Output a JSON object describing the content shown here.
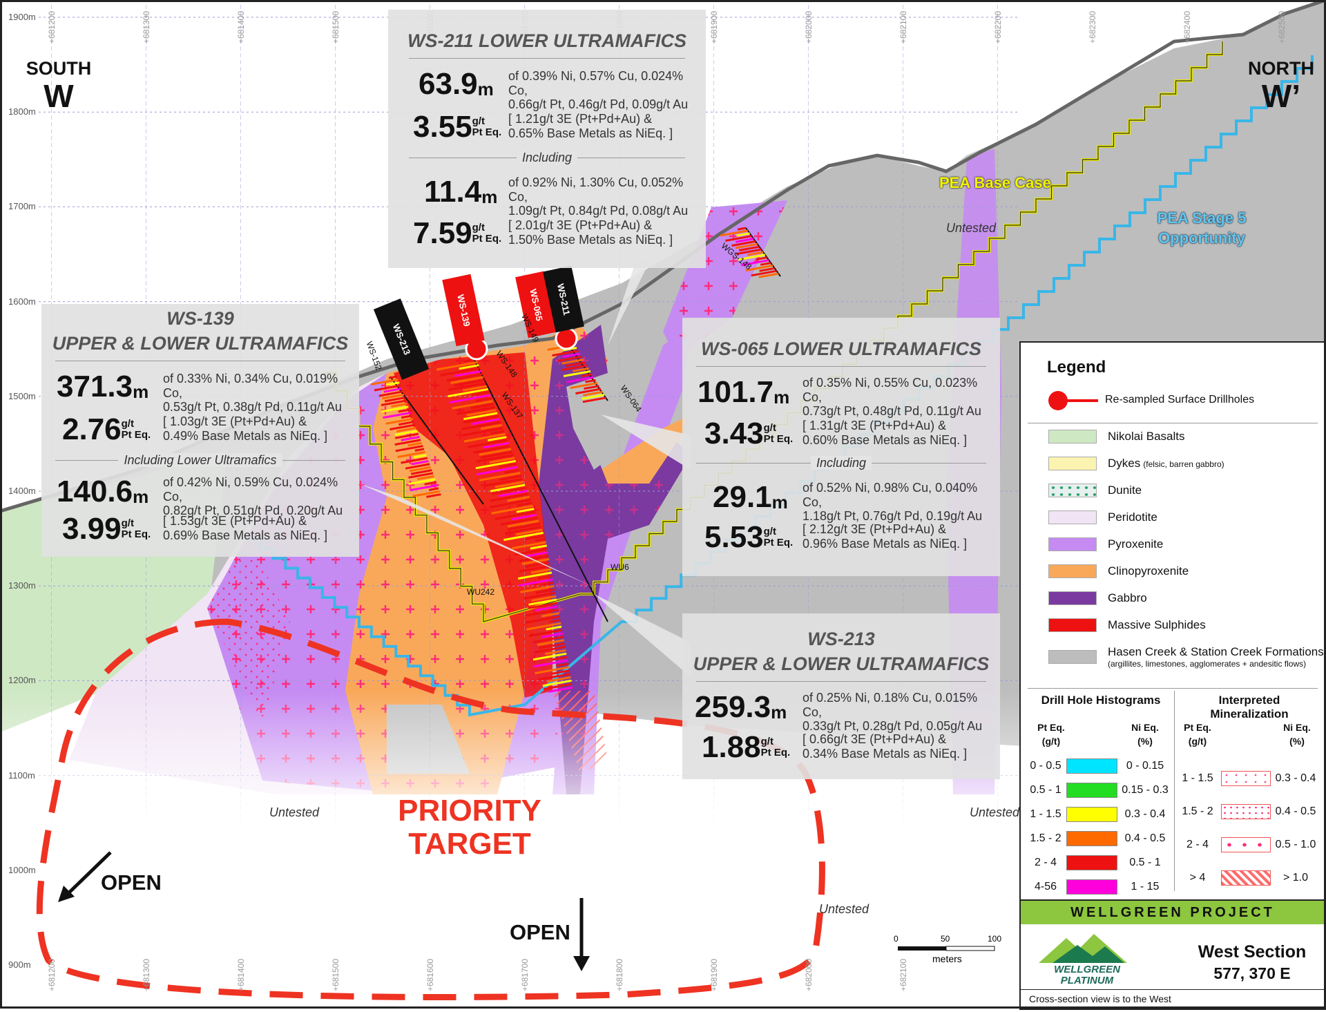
{
  "direction": {
    "south_label": "SOUTH",
    "south_letter": "W",
    "north_label": "NORTH",
    "north_letter": "W’"
  },
  "elevations": [
    "1900m",
    "1800m",
    "1700m",
    "1600m",
    "1500m",
    "1400m",
    "1300m",
    "1200m",
    "1100m",
    "1000m",
    "900m"
  ],
  "eastings": [
    "+681200",
    "+681300",
    "+681400",
    "+681500",
    "+681600",
    "+681700",
    "+681800",
    "+681900",
    "+682000",
    "+682100",
    "+682200",
    "+682300",
    "+682400",
    "+682500"
  ],
  "pit_labels": {
    "base_case": "PEA Base Case",
    "stage5_line1": "PEA Stage 5",
    "stage5_line2": "Opportunity"
  },
  "untested": [
    "Untested",
    "Untested",
    "Untested",
    "Untested"
  ],
  "priority": {
    "line1": "PRIORITY",
    "line2": "TARGET"
  },
  "open": [
    "OPEN",
    "OPEN"
  ],
  "drillholes": {
    "ws213": "WS-213",
    "ws139": "WS-139",
    "ws065": "WS-065",
    "ws211": "WS-211",
    "ws152": "WS-152",
    "ws149": "WS-149",
    "ws148": "WS-148",
    "ws137": "WS-137",
    "ws064": "WS-064",
    "wgs148": "WGS-148",
    "wu242": "WU242",
    "w6": "WU6"
  },
  "callouts": {
    "ws211": {
      "title": "WS-211 LOWER ULTRAMAFICS",
      "s1_val": "63.9",
      "s1_unit": "m",
      "s1_desc1": "of 0.39% Ni, 0.57% Cu, 0.024% Co,",
      "s1_desc2": "0.66g/t Pt, 0.46g/t Pd, 0.09g/t Au",
      "s2_val": "3.55",
      "s2_u1": "g/t",
      "s2_u2": "Pt Eq.",
      "s2_desc1": "[ 1.21g/t 3E (Pt+Pd+Au) &",
      "s2_desc2": "0.65% Base Metals as NiEq. ]",
      "including": "Including",
      "s3_val": "11.4",
      "s3_unit": "m",
      "s3_desc1": "of 0.92% Ni, 1.30% Cu, 0.052% Co,",
      "s3_desc2": "1.09g/t Pt, 0.84g/t Pd, 0.08g/t Au",
      "s4_val": "7.59",
      "s4_u1": "g/t",
      "s4_u2": "Pt Eq.",
      "s4_desc1": "[ 2.01g/t 3E (Pt+Pd+Au) &",
      "s4_desc2": "1.50% Base Metals as NiEq. ]"
    },
    "ws139": {
      "title1": "WS-139",
      "title2": "UPPER & LOWER ULTRAMAFICS",
      "s1_val": "371.3",
      "s1_unit": "m",
      "s1_desc1": "of 0.33% Ni, 0.34% Cu, 0.019% Co,",
      "s1_desc2": "0.53g/t Pt, 0.38g/t Pd, 0.11g/t Au",
      "s2_val": "2.76",
      "s2_u1": "g/t",
      "s2_u2": "Pt Eq.",
      "s2_desc1": "[ 1.03g/t 3E (Pt+Pd+Au) &",
      "s2_desc2": "0.49% Base Metals as NiEq. ]",
      "including": "Including Lower Ultramafics",
      "s3_val": "140.6",
      "s3_unit": "m",
      "s3_desc1": "of 0.42% Ni, 0.59% Cu, 0.024% Co,",
      "s3_desc2": "0.82g/t Pt, 0.51g/t Pd, 0.20g/t Au",
      "s4_val": "3.99",
      "s4_u1": "g/t",
      "s4_u2": "Pt Eq.",
      "s4_desc1": "[ 1.53g/t 3E (Pt+Pd+Au) &",
      "s4_desc2": "0.69% Base Metals as NiEq. ]"
    },
    "ws065": {
      "title": "WS-065 LOWER ULTRAMAFICS",
      "s1_val": "101.7",
      "s1_unit": "m",
      "s1_desc1": "of 0.35% Ni, 0.55% Cu, 0.023% Co,",
      "s1_desc2": "0.73g/t Pt, 0.48g/t Pd, 0.11g/t Au",
      "s2_val": "3.43",
      "s2_u1": "g/t",
      "s2_u2": "Pt Eq.",
      "s2_desc1": "[ 1.31g/t 3E (Pt+Pd+Au) &",
      "s2_desc2": "0.60% Base Metals as NiEq. ]",
      "including": "Including",
      "s3_val": "29.1",
      "s3_unit": "m",
      "s3_desc1": "of 0.52% Ni, 0.98% Cu, 0.040% Co,",
      "s3_desc2": "1.18g/t Pt, 0.76g/t Pd, 0.19g/t Au",
      "s4_val": "5.53",
      "s4_u1": "g/t",
      "s4_u2": "Pt Eq.",
      "s4_desc1": "[ 2.12g/t 3E (Pt+Pd+Au) &",
      "s4_desc2": "0.96% Base Metals as NiEq. ]"
    },
    "ws213": {
      "title1": "WS-213",
      "title2": "UPPER & LOWER ULTRAMAFICS",
      "s1_val": "259.3",
      "s1_unit": "m",
      "s1_desc1": "of 0.25% Ni, 0.18% Cu, 0.015% Co,",
      "s1_desc2": "0.33g/t Pt, 0.28g/t Pd, 0.05g/t Au",
      "s2_val": "1.88",
      "s2_u1": "g/t",
      "s2_u2": "Pt Eq.",
      "s2_desc1": "[ 0.66g/t 3E (Pt+Pd+Au) &",
      "s2_desc2": "0.34% Base Metals as NiEq. ]"
    }
  },
  "legend": {
    "title": "Legend",
    "resampled": "Re-sampled Surface Drillholes",
    "units": [
      {
        "label": "Nikolai Basalts",
        "note": "",
        "color": "#cfe8c4"
      },
      {
        "label": "Dykes",
        "note": "(felsic, barren gabbro)",
        "color": "#fbf3b0"
      },
      {
        "label": "Dunite",
        "note": "",
        "color": "#e6f0ee"
      },
      {
        "label": "Peridotite",
        "note": "",
        "color": "#f1e4f5"
      },
      {
        "label": "Pyroxenite",
        "note": "",
        "color": "#c58bf2"
      },
      {
        "label": "Clinopyroxenite",
        "note": "",
        "color": "#f9a85a"
      },
      {
        "label": "Gabbro",
        "note": "",
        "color": "#7a3aa0"
      },
      {
        "label": "Massive Sulphides",
        "note": "",
        "color": "#ee1111"
      },
      {
        "label": "Hasen Creek & Station Creek Formations",
        "note": "(argillites, limestones, agglomerates + andesitic flows)",
        "color": "#bdbdbd"
      }
    ],
    "histo_title": "Drill Hole Histograms",
    "histo_pt_head1": "Pt Eq.",
    "histo_pt_head2": "(g/t)",
    "histo_ni_head1": "Ni Eq.",
    "histo_ni_head2": "(%)",
    "histo": [
      {
        "pt": "0 - 0.5",
        "ni": "0 - 0.15",
        "color": "#00e5ff"
      },
      {
        "pt": "0.5 - 1",
        "ni": "0.15 - 0.3",
        "color": "#22dd22"
      },
      {
        "pt": "1 - 1.5",
        "ni": "0.3 - 0.4",
        "color": "#ffff00"
      },
      {
        "pt": "1.5 - 2",
        "ni": "0.4 - 0.5",
        "color": "#ff6a00"
      },
      {
        "pt": "2 - 4",
        "ni": "0.5 - 1",
        "color": "#ee1111"
      },
      {
        "pt": "4-56",
        "ni": "1 - 15",
        "color": "#ff00dd"
      }
    ],
    "interp_title1": "Interpreted",
    "interp_title2": "Mineralization",
    "interp_pt_head1": "Pt Eq.",
    "interp_pt_head2": "(g/t)",
    "interp_ni_head1": "Ni Eq.",
    "interp_ni_head2": "(%)",
    "interp": [
      {
        "pt": "1 - 1.5",
        "ni": "0.3 - 0.4"
      },
      {
        "pt": "1.5 - 2",
        "ni": "0.4 - 0.5"
      },
      {
        "pt": "2 - 4",
        "ni": "0.5 - 1.0"
      },
      {
        "pt": "> 4",
        "ni": "> 1.0"
      }
    ]
  },
  "scale": {
    "t0": "0",
    "t50": "50",
    "t100": "100",
    "unit": "meters"
  },
  "project": {
    "banner": "WELLGREEN PROJECT",
    "logo1": "WELLGREEN",
    "logo2": "PLATINUM",
    "section": "West Section",
    "easting": "577, 370 E",
    "note": "Cross-section view is to the West"
  },
  "colors": {
    "pyroxenite": "#c58bf2",
    "clinopyroxenite": "#f9a85a",
    "gabbro": "#7a3aa0",
    "hasen": "#bdbdbd",
    "peridotite": "#f1e4f5",
    "basalt": "#cfe8c4",
    "target": "#ee3322",
    "pit_base": "#e8e800",
    "pit_stage5": "#39b6e8"
  }
}
